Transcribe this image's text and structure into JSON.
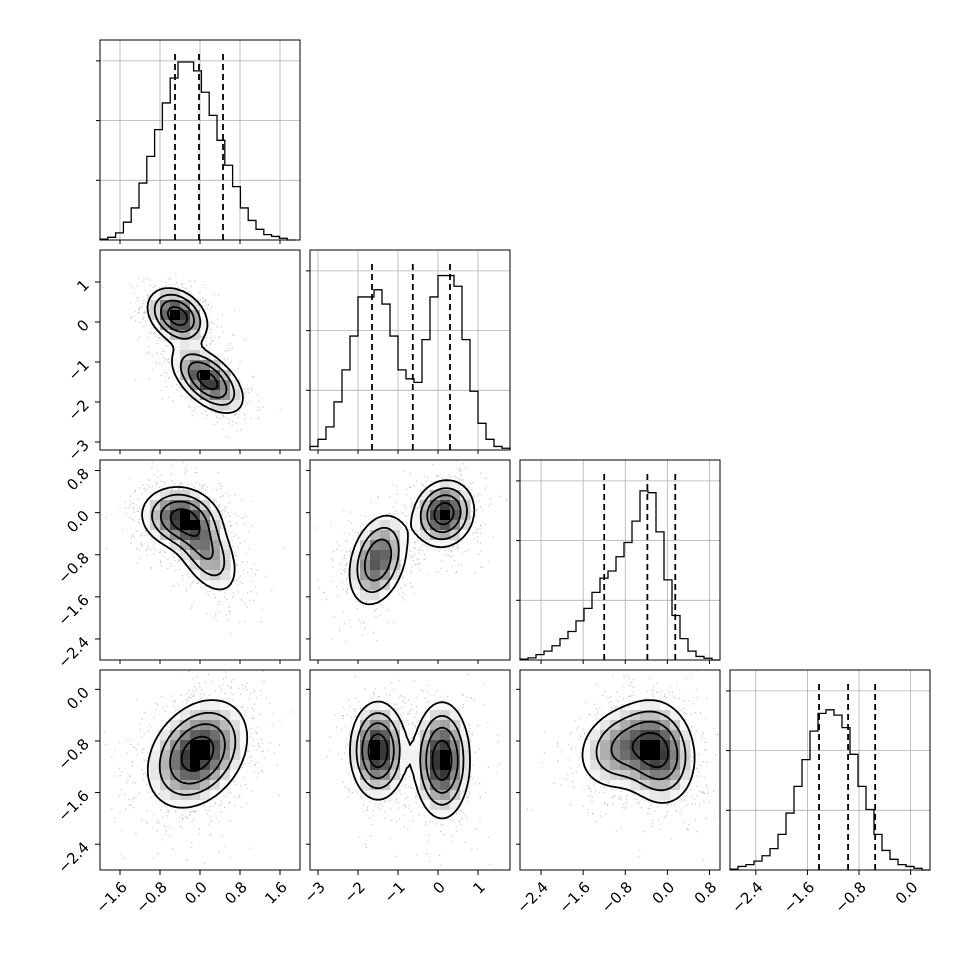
{
  "chart_data": {
    "type": "corner",
    "parameters": 4,
    "grid": true,
    "quantile_lines": "dashed",
    "tick_labels": {
      "p0": [
        "−1.6",
        "−0.8",
        "0.0",
        "0.8",
        "1.6"
      ],
      "p1": [
        "−3",
        "−2",
        "−1",
        "0",
        "1"
      ],
      "p2": [
        "−2.4",
        "−1.6",
        "−0.8",
        "0.0",
        "0.8"
      ],
      "p3": [
        "−2.4",
        "−1.6",
        "−0.8",
        "0.0"
      ]
    },
    "tick_values": {
      "p0": [
        -1.6,
        -0.8,
        0.0,
        0.8,
        1.6
      ],
      "p1": [
        -3,
        -2,
        -1,
        0,
        1
      ],
      "p2": [
        -2.4,
        -1.6,
        -0.8,
        0.0,
        0.8
      ],
      "p3": [
        -2.4,
        -1.6,
        -0.8,
        0.0
      ]
    },
    "ranges": {
      "p0": [
        -2.0,
        2.0
      ],
      "p1": [
        -3.2,
        1.8
      ],
      "p2": [
        -2.8,
        1.0
      ],
      "p3": [
        -2.8,
        0.3
      ]
    },
    "histograms": {
      "p0": {
        "quantiles": [
          -0.5,
          -0.02,
          0.46
        ],
        "edges": [
          -2.0,
          1.9
        ],
        "counts": [
          0.005,
          0.015,
          0.04,
          0.1,
          0.18,
          0.32,
          0.47,
          0.62,
          0.77,
          0.91,
          1.0,
          1.0,
          0.95,
          0.83,
          0.7,
          0.56,
          0.42,
          0.3,
          0.18,
          0.11,
          0.06,
          0.03,
          0.02,
          0.01,
          0.0
        ]
      },
      "p1": {
        "quantiles": [
          -1.65,
          -0.63,
          0.3
        ],
        "edges": [
          -3.2,
          1.8
        ],
        "counts": [
          0.02,
          0.06,
          0.13,
          0.27,
          0.45,
          0.64,
          0.86,
          0.86,
          0.9,
          0.82,
          0.64,
          0.45,
          0.4,
          0.38,
          0.62,
          0.86,
          0.98,
          0.98,
          0.92,
          0.62,
          0.33,
          0.15,
          0.06,
          0.02,
          0.01
        ]
      },
      "p2": {
        "quantiles": [
          -1.2,
          -0.38,
          0.15
        ],
        "edges": [
          -2.8,
          1.0
        ],
        "counts": [
          0.005,
          0.012,
          0.03,
          0.05,
          0.08,
          0.12,
          0.16,
          0.22,
          0.29,
          0.38,
          0.46,
          0.5,
          0.58,
          0.66,
          0.78,
          0.95,
          0.94,
          0.72,
          0.45,
          0.25,
          0.12,
          0.05,
          0.02,
          0.01,
          0.0
        ]
      },
      "p3": {
        "quantiles": [
          -1.42,
          -0.97,
          -0.55
        ],
        "edges": [
          -2.8,
          0.3
        ],
        "counts": [
          0.005,
          0.02,
          0.03,
          0.05,
          0.08,
          0.12,
          0.2,
          0.32,
          0.47,
          0.62,
          0.78,
          0.88,
          0.9,
          0.87,
          0.8,
          0.65,
          0.47,
          0.34,
          0.2,
          0.11,
          0.06,
          0.03,
          0.02,
          0.01,
          0.0
        ]
      }
    },
    "pairs": [
      {
        "x": "p0",
        "y": "p1",
        "modes": [
          {
            "x": -0.45,
            "y": 0.15,
            "sx": 0.3,
            "sy": 0.35,
            "rho": -0.3,
            "w": 1.0
          },
          {
            "x": 0.15,
            "y": -1.45,
            "sx": 0.36,
            "sy": 0.42,
            "rho": -0.55,
            "w": 0.95
          }
        ]
      },
      {
        "x": "p0",
        "y": "p2",
        "modes": [
          {
            "x": -0.4,
            "y": -0.1,
            "sx": 0.4,
            "sy": 0.3,
            "rho": -0.1,
            "w": 1.0
          },
          {
            "x": 0.1,
            "y": -0.7,
            "sx": 0.35,
            "sy": 0.45,
            "rho": -0.5,
            "w": 0.7
          }
        ]
      },
      {
        "x": "p0",
        "y": "p3",
        "modes": [
          {
            "x": -0.05,
            "y": -1.0,
            "sx": 0.5,
            "sy": 0.42,
            "rho": 0.3,
            "w": 1.0
          }
        ]
      },
      {
        "x": "p1",
        "y": "p2",
        "modes": [
          {
            "x": 0.15,
            "y": -0.02,
            "sx": 0.38,
            "sy": 0.32,
            "rho": 0.1,
            "w": 1.0
          },
          {
            "x": -1.5,
            "y": -0.9,
            "sx": 0.38,
            "sy": 0.45,
            "rho": 0.3,
            "w": 0.8
          }
        ]
      },
      {
        "x": "p1",
        "y": "p3",
        "modes": [
          {
            "x": -1.5,
            "y": -0.95,
            "sx": 0.35,
            "sy": 0.38,
            "rho": 0.0,
            "w": 1.0
          },
          {
            "x": 0.1,
            "y": -1.1,
            "sx": 0.35,
            "sy": 0.45,
            "rho": 0.0,
            "w": 1.0
          }
        ]
      },
      {
        "x": "p2",
        "y": "p3",
        "modes": [
          {
            "x": -0.15,
            "y": -1.0,
            "sx": 0.35,
            "sy": 0.4,
            "rho": -0.1,
            "w": 1.0
          },
          {
            "x": -0.85,
            "y": -0.9,
            "sx": 0.45,
            "sy": 0.35,
            "rho": 0.2,
            "w": 0.7
          }
        ]
      }
    ]
  }
}
